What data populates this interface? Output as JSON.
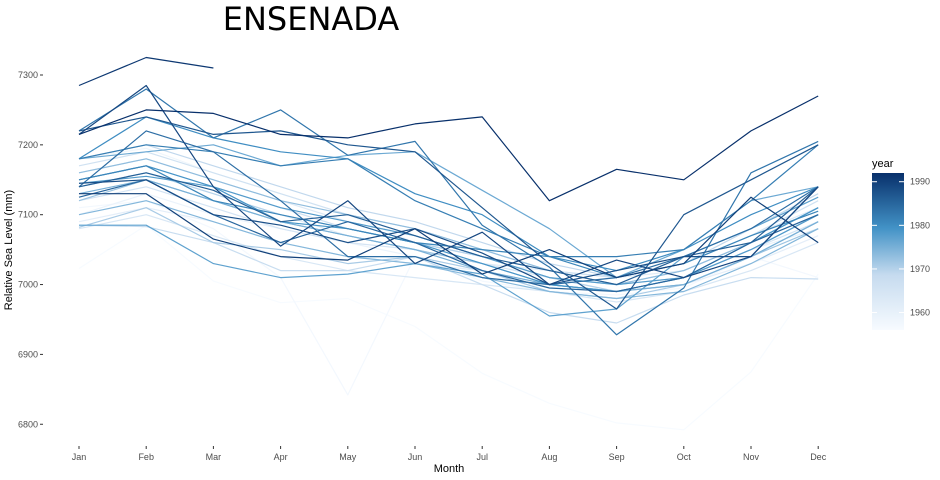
{
  "chart_data": {
    "type": "line",
    "title": "ENSENADA",
    "xlabel": "Month",
    "ylabel": "Relative Sea Level (mm)",
    "categories": [
      "Jan",
      "Feb",
      "Mar",
      "Apr",
      "May",
      "Jun",
      "Jul",
      "Aug",
      "Sep",
      "Oct",
      "Nov",
      "Dec"
    ],
    "y_ticks": [
      6800,
      6900,
      7000,
      7100,
      7200,
      7300
    ],
    "ylim": [
      6760,
      7345
    ],
    "grid": false,
    "legend": {
      "title": "year",
      "position": "right",
      "type": "colorbar",
      "ticks": [
        1960,
        1970,
        1980,
        1990
      ],
      "range": [
        1956,
        1992
      ],
      "color_low": "#f7fbff",
      "color_high": "#08306b"
    },
    "series": [
      {
        "year": 1956,
        "values": [
          7023,
          7085,
          7005,
          6974,
          6980,
          6940,
          6873,
          6830,
          6802,
          6792,
          6875,
          7015
        ]
      },
      {
        "year": 1957,
        "values": [
          7110,
          7120,
          7080,
          7010,
          6842,
          7040,
          7005,
          6990,
          6985,
          6995,
          7040,
          7010
        ]
      },
      {
        "year": 1958,
        "values": [
          7180,
          7195,
          7160,
          7130,
          7100,
          7060,
          7040,
          7010,
          7000,
          7020,
          7060,
          7100
        ]
      },
      {
        "year": 1959,
        "values": [
          7100,
          7130,
          7100,
          7080,
          7060,
          7040,
          7020,
          7000,
          6990,
          7000,
          7040,
          7090
        ]
      },
      {
        "year": 1960,
        "values": [
          7130,
          7150,
          7120,
          7090,
          7070,
          7050,
          7030,
          7010,
          7000,
          7010,
          7050,
          7080
        ]
      },
      {
        "year": 1961,
        "values": [
          7090,
          7110,
          7090,
          7060,
          7040,
          7030,
          7020,
          7000,
          6990,
          7000,
          7030,
          7070
        ]
      },
      {
        "year": 1962,
        "values": [
          7140,
          7160,
          7130,
          7100,
          7070,
          7050,
          7030,
          7020,
          7010,
          7020,
          7060,
          7100
        ]
      },
      {
        "year": 1963,
        "values": [
          7160,
          7180,
          7150,
          7120,
          7090,
          7070,
          7040,
          7020,
          7010,
          7030,
          7070,
          7110
        ]
      },
      {
        "year": 1964,
        "values": [
          7080,
          7100,
          7070,
          7040,
          7020,
          7010,
          7000,
          6990,
          6975,
          6990,
          7020,
          7060
        ]
      },
      {
        "year": 1965,
        "values": [
          7120,
          7140,
          7110,
          7080,
          7060,
          7050,
          7030,
          7010,
          7000,
          7010,
          7050,
          7090
        ]
      },
      {
        "year": 1966,
        "values": [
          7170,
          7190,
          7160,
          7130,
          7100,
          7080,
          7050,
          7020,
          7010,
          7030,
          7070,
          7120
        ]
      },
      {
        "year": 1967,
        "values": [
          7150,
          7170,
          7140,
          7110,
          7080,
          7060,
          7040,
          7010,
          7000,
          7020,
          7060,
          7100
        ]
      },
      {
        "year": 1968,
        "values": [
          7085,
          7083,
          7060,
          7020,
          7020,
          7040,
          7000,
          6960,
          6945,
          6985,
          7010,
          7008
        ]
      },
      {
        "year": 1969,
        "values": [
          7180,
          7200,
          7170,
          7140,
          7110,
          7090,
          7060,
          7030,
          7010,
          7030,
          7080,
          7130
        ]
      },
      {
        "year": 1970,
        "values": [
          7140,
          7160,
          7130,
          7100,
          7080,
          7060,
          7040,
          7010,
          6990,
          7010,
          7050,
          7100
        ]
      },
      {
        "year": 1971,
        "values": [
          7082,
          7110,
          7060,
          7050,
          7030,
          7040,
          7020,
          6990,
          6980,
          7000,
          7040,
          7090
        ]
      },
      {
        "year": 1972,
        "values": [
          7120,
          7150,
          7120,
          7090,
          7070,
          7050,
          7030,
          7000,
          6990,
          7000,
          7040,
          7080
        ]
      },
      {
        "year": 1973,
        "values": [
          7160,
          7180,
          7150,
          7120,
          7100,
          7080,
          7050,
          7020,
          7000,
          7020,
          7060,
          7110
        ]
      },
      {
        "year": 1974,
        "values": [
          7100,
          7120,
          7090,
          7060,
          7040,
          7030,
          7010,
          6990,
          6980,
          6990,
          7030,
          7080
        ]
      },
      {
        "year": 1975,
        "values": [
          7130,
          7150,
          7120,
          7090,
          7070,
          7050,
          7020,
          7000,
          6990,
          7000,
          7040,
          7090
        ]
      },
      {
        "year": 1976,
        "values": [
          7180,
          7190,
          7200,
          7170,
          7185,
          7190,
          7135,
          7080,
          7010,
          7050,
          7120,
          7140
        ]
      },
      {
        "year": 1977,
        "values": [
          7085,
          7085,
          7030,
          7010,
          7015,
          7030,
          7015,
          6955,
          6965,
          7040,
          7080,
          7125
        ]
      },
      {
        "year": 1978,
        "values": [
          7145,
          7155,
          7140,
          7110,
          7090,
          7070,
          7040,
          7010,
          7000,
          7010,
          7050,
          7100
        ]
      },
      {
        "year": 1979,
        "values": [
          7150,
          7170,
          7140,
          7090,
          7080,
          7060,
          7030,
          7000,
          6990,
          7010,
          7060,
          7110
        ]
      },
      {
        "year": 1980,
        "values": [
          7180,
          7240,
          7210,
          7190,
          7180,
          7130,
          7100,
          7040,
          7020,
          7050,
          7100,
          7140
        ]
      },
      {
        "year": 1981,
        "values": [
          7150,
          7170,
          7120,
          7100,
          7080,
          7060,
          7050,
          7040,
          7010,
          7030,
          7070,
          7105
        ]
      },
      {
        "year": 1982,
        "values": [
          7180,
          7200,
          7190,
          7170,
          7180,
          7120,
          7080,
          7040,
          7040,
          7050,
          7120,
          7200
        ]
      },
      {
        "year": 1983,
        "values": [
          7220,
          7280,
          7210,
          7250,
          7185,
          7205,
          7085,
          7025,
          6928,
          6995,
          7160,
          7205
        ]
      },
      {
        "year": 1984,
        "values": [
          7140,
          7220,
          7190,
          7120,
          7040,
          7040,
          7010,
          7000,
          7010,
          7040,
          7080,
          7140
        ]
      },
      {
        "year": 1985,
        "values": [
          7125,
          7150,
          7100,
          7060,
          7090,
          7060,
          7020,
          6995,
          6990,
          7010,
          7060,
          7100
        ]
      },
      {
        "year": 1986,
        "values": [
          7140,
          7160,
          7135,
          7090,
          7100,
          7070,
          7040,
          7020,
          7000,
          7040,
          7060,
          7140
        ]
      },
      {
        "year": 1987,
        "values": [
          7220,
          7240,
          7215,
          7220,
          7200,
          7190,
          7110,
          7030,
          6965,
          7100,
          7150,
          7200
        ]
      },
      {
        "year": 1988,
        "values": [
          7145,
          7150,
          7100,
          7085,
          7060,
          7080,
          7045,
          7000,
          7020,
          7040,
          7040,
          7140
        ]
      },
      {
        "year": 1989,
        "values": [
          7215,
          7285,
          7140,
          7055,
          7120,
          7030,
          7075,
          7000,
          7035,
          7010,
          7040,
          7140
        ]
      },
      {
        "year": 1990,
        "values": [
          7130,
          7130,
          7065,
          7040,
          7035,
          7080,
          7015,
          7050,
          7010,
          7030,
          7125,
          7060
        ]
      },
      {
        "year": 1991,
        "values": [
          7285,
          7325,
          7310,
          null,
          null,
          null,
          null,
          null,
          null,
          null,
          null,
          null
        ]
      },
      {
        "year": 1992,
        "values": [
          7215,
          7250,
          7245,
          7215,
          7210,
          7230,
          7240,
          7120,
          7165,
          7150,
          7220,
          7270
        ]
      }
    ]
  }
}
